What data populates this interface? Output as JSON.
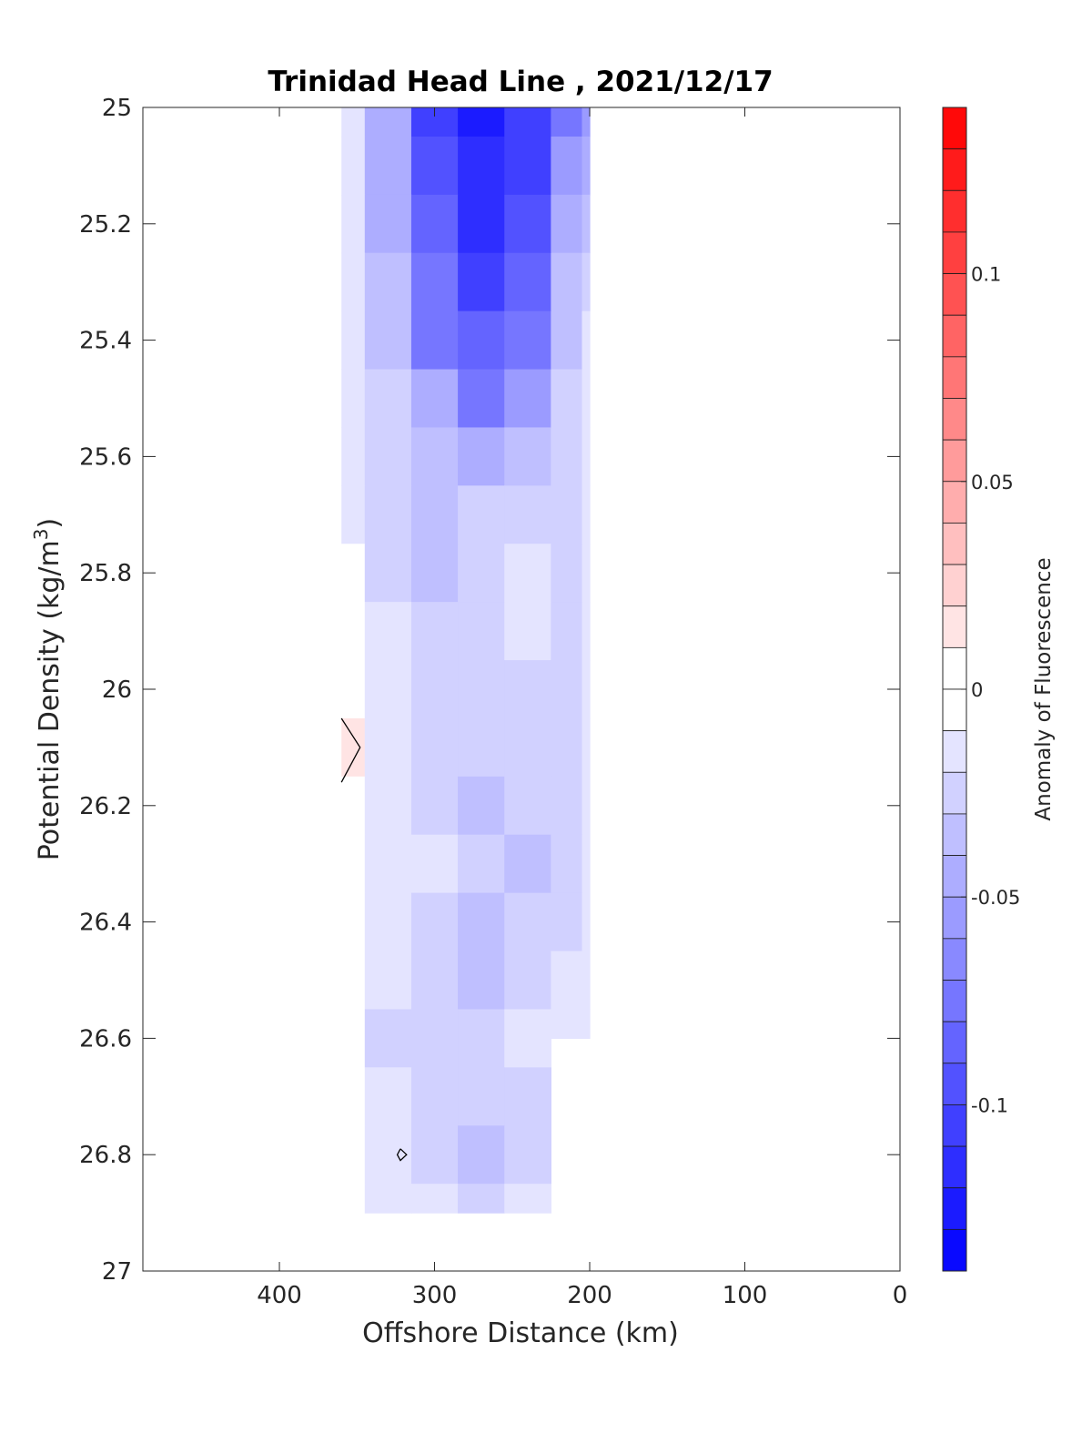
{
  "chart_data": {
    "type": "heatmap",
    "title": "Trinidad Head Line , 2021/12/17",
    "xlabel": "Offshore Distance (km)",
    "ylabel": "Potential Density (kg/m³)",
    "ylabel_main": "Potential Density (kg/m",
    "ylabel_sup": "3",
    "ylabel_close": ")",
    "xlim": [
      488,
      0
    ],
    "ylim": [
      25,
      27
    ],
    "x_reversed": true,
    "y_reversed": true,
    "x_ticks": [
      400,
      300,
      200,
      100,
      0
    ],
    "x_tick_labels": [
      "400",
      "300",
      "200",
      "100",
      "0"
    ],
    "y_ticks": [
      25,
      25.2,
      25.4,
      25.6,
      25.8,
      26,
      26.2,
      26.4,
      26.6,
      26.8,
      27
    ],
    "y_tick_labels": [
      "25",
      "25.2",
      "25.4",
      "25.6",
      "25.8",
      "26",
      "26.2",
      "26.4",
      "26.6",
      "26.8",
      "27"
    ],
    "colorbar": {
      "label": "Anomaly of Fluorescence",
      "range": [
        -0.14,
        0.14
      ],
      "levels_step": 0.01,
      "ticks": [
        0.1,
        0.05,
        0,
        -0.05,
        -0.1
      ],
      "tick_labels": [
        "0.1",
        "0.05",
        "0",
        "-0.05",
        "-0.1"
      ]
    },
    "x": [
      360,
      330,
      300,
      270,
      240,
      210,
      200
    ],
    "y": [
      25.0,
      25.1,
      25.2,
      25.3,
      25.4,
      25.5,
      25.6,
      25.7,
      25.8,
      25.9,
      26.0,
      26.1,
      26.2,
      26.3,
      26.4,
      26.5,
      26.6,
      26.7,
      26.8,
      26.9
    ],
    "y_bottom_by_column": [
      26.9,
      26.9,
      26.9,
      26.9,
      26.9,
      26.6,
      26.6
    ],
    "z": [
      [
        -0.02,
        -0.05,
        -0.11,
        -0.13,
        -0.11,
        -0.07,
        -0.06
      ],
      [
        -0.02,
        -0.05,
        -0.1,
        -0.12,
        -0.11,
        -0.06,
        -0.05
      ],
      [
        -0.02,
        -0.05,
        -0.09,
        -0.12,
        -0.1,
        -0.05,
        -0.04
      ],
      [
        -0.02,
        -0.04,
        -0.08,
        -0.11,
        -0.09,
        -0.04,
        -0.03
      ],
      [
        -0.02,
        -0.04,
        -0.07,
        -0.09,
        -0.08,
        -0.04,
        -0.02
      ],
      [
        -0.02,
        -0.03,
        -0.05,
        -0.07,
        -0.06,
        -0.03,
        -0.02
      ],
      [
        -0.02,
        -0.03,
        -0.04,
        -0.05,
        -0.04,
        -0.03,
        -0.02
      ],
      [
        -0.02,
        -0.03,
        -0.04,
        -0.03,
        -0.03,
        -0.03,
        -0.02
      ],
      [
        -0.01,
        -0.03,
        -0.04,
        -0.03,
        -0.02,
        -0.03,
        -0.02
      ],
      [
        -0.01,
        -0.02,
        -0.03,
        -0.03,
        -0.02,
        -0.03,
        -0.02
      ],
      [
        -0.01,
        -0.02,
        -0.03,
        -0.03,
        -0.03,
        -0.03,
        -0.02
      ],
      [
        0.01,
        -0.02,
        -0.03,
        -0.03,
        -0.03,
        -0.03,
        -0.02
      ],
      [
        -0.01,
        -0.02,
        -0.03,
        -0.04,
        -0.03,
        -0.03,
        -0.02
      ],
      [
        -0.01,
        -0.02,
        -0.02,
        -0.03,
        -0.04,
        -0.03,
        -0.02
      ],
      [
        -0.01,
        -0.02,
        -0.03,
        -0.04,
        -0.03,
        -0.03,
        -0.02
      ],
      [
        -0.01,
        -0.02,
        -0.03,
        -0.04,
        -0.03,
        -0.02,
        -0.02
      ],
      [
        -0.01,
        -0.03,
        -0.03,
        -0.03,
        -0.02,
        -0.02,
        -0.02
      ],
      [
        -0.01,
        -0.02,
        -0.03,
        -0.03,
        -0.03,
        -0.02,
        -0.02
      ],
      [
        -0.01,
        -0.02,
        -0.03,
        -0.04,
        -0.03,
        -0.02,
        -0.02
      ],
      [
        -0.01,
        -0.02,
        -0.02,
        -0.03,
        -0.02,
        -0.02,
        -0.02
      ]
    ],
    "zero_contours": [
      {
        "points": [
          [
            360,
            26.05
          ],
          [
            348,
            26.1
          ],
          [
            360,
            26.16
          ]
        ]
      },
      {
        "points": [
          [
            322,
            26.79
          ],
          [
            318,
            26.8
          ],
          [
            322,
            26.81
          ],
          [
            324,
            26.8
          ],
          [
            322,
            26.79
          ]
        ]
      }
    ],
    "grid": false,
    "colorbar_position": "right"
  }
}
